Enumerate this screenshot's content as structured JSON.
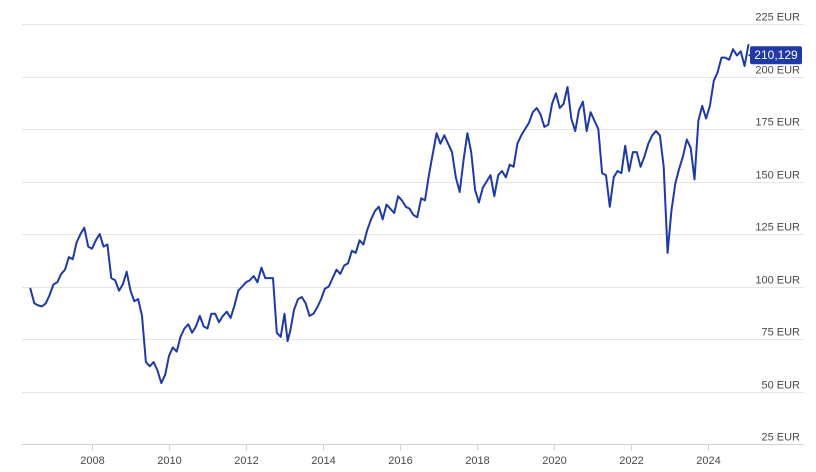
{
  "chart_data": {
    "type": "line",
    "title": "",
    "xlabel": "",
    "ylabel": "",
    "unit": "EUR",
    "ylim": [
      25,
      225
    ],
    "xlim": [
      2006.35,
      2025.2
    ],
    "y_ticks": [
      25,
      50,
      75,
      100,
      125,
      150,
      175,
      200,
      225
    ],
    "y_tick_labels": [
      "25 EUR",
      "50 EUR",
      "75 EUR",
      "100 EUR",
      "125 EUR",
      "150 EUR",
      "175 EUR",
      "200 EUR",
      "225 EUR"
    ],
    "x_ticks": [
      2008,
      2010,
      2012,
      2014,
      2016,
      2018,
      2020,
      2022,
      2024
    ],
    "x_tick_labels": [
      "2008",
      "2010",
      "2012",
      "2014",
      "2016",
      "2018",
      "2020",
      "2022",
      "2024"
    ],
    "grid": true,
    "line_color": "#1f3aa6",
    "last_value_label": "210,129",
    "last_value": 210.129,
    "series": [
      {
        "points": [
          [
            2006.4,
            99
          ],
          [
            2006.5,
            92
          ],
          [
            2006.6,
            91
          ],
          [
            2006.7,
            90.5
          ],
          [
            2006.8,
            92
          ],
          [
            2006.9,
            96
          ],
          [
            2007.0,
            101
          ],
          [
            2007.1,
            102
          ],
          [
            2007.2,
            106
          ],
          [
            2007.3,
            108
          ],
          [
            2007.4,
            114
          ],
          [
            2007.5,
            113
          ],
          [
            2007.6,
            121
          ],
          [
            2007.7,
            125
          ],
          [
            2007.8,
            128
          ],
          [
            2007.9,
            119
          ],
          [
            2008.0,
            118
          ],
          [
            2008.1,
            122
          ],
          [
            2008.2,
            125
          ],
          [
            2008.3,
            119
          ],
          [
            2008.4,
            120
          ],
          [
            2008.5,
            104
          ],
          [
            2008.6,
            103
          ],
          [
            2008.7,
            98
          ],
          [
            2008.8,
            101
          ],
          [
            2008.9,
            107
          ],
          [
            2009.0,
            98
          ],
          [
            2009.1,
            93
          ],
          [
            2009.2,
            94
          ],
          [
            2009.3,
            86
          ],
          [
            2009.4,
            64
          ],
          [
            2009.5,
            62
          ],
          [
            2009.6,
            64
          ],
          [
            2009.7,
            60
          ],
          [
            2009.8,
            54
          ],
          [
            2009.9,
            58
          ],
          [
            2010.0,
            67
          ],
          [
            2010.1,
            71
          ],
          [
            2010.2,
            69
          ],
          [
            2010.3,
            76
          ],
          [
            2010.4,
            80
          ],
          [
            2010.5,
            82
          ],
          [
            2010.6,
            78
          ],
          [
            2010.7,
            81
          ],
          [
            2010.8,
            86
          ],
          [
            2010.9,
            81
          ],
          [
            2011.0,
            80
          ],
          [
            2011.1,
            87
          ],
          [
            2011.2,
            87
          ],
          [
            2011.3,
            83
          ],
          [
            2011.4,
            86
          ],
          [
            2011.5,
            88
          ],
          [
            2011.6,
            85
          ],
          [
            2011.7,
            91
          ],
          [
            2011.8,
            98
          ],
          [
            2011.9,
            100
          ],
          [
            2012.0,
            102
          ],
          [
            2012.1,
            103
          ],
          [
            2012.2,
            105
          ],
          [
            2012.3,
            102
          ],
          [
            2012.4,
            109
          ],
          [
            2012.5,
            104
          ],
          [
            2012.6,
            104
          ],
          [
            2012.7,
            104
          ],
          [
            2012.8,
            78
          ],
          [
            2012.9,
            76
          ],
          [
            2013.0,
            87
          ],
          [
            2013.08,
            74
          ],
          [
            2013.15,
            79
          ],
          [
            2013.25,
            89
          ],
          [
            2013.35,
            94
          ],
          [
            2013.45,
            95
          ],
          [
            2013.55,
            92
          ],
          [
            2013.65,
            86
          ],
          [
            2013.75,
            87
          ],
          [
            2013.85,
            90
          ],
          [
            2013.95,
            94
          ],
          [
            2014.05,
            99
          ],
          [
            2014.15,
            100
          ],
          [
            2014.25,
            104
          ],
          [
            2014.35,
            108
          ],
          [
            2014.45,
            106
          ],
          [
            2014.55,
            110
          ],
          [
            2014.65,
            111
          ],
          [
            2014.75,
            117
          ],
          [
            2014.85,
            116
          ],
          [
            2014.95,
            122
          ],
          [
            2015.05,
            120
          ],
          [
            2015.15,
            127
          ],
          [
            2015.25,
            132
          ],
          [
            2015.35,
            136
          ],
          [
            2015.45,
            138
          ],
          [
            2015.55,
            132
          ],
          [
            2015.65,
            139
          ],
          [
            2015.75,
            137
          ],
          [
            2015.85,
            135
          ],
          [
            2015.95,
            143
          ],
          [
            2016.05,
            141
          ],
          [
            2016.15,
            138
          ],
          [
            2016.25,
            137
          ],
          [
            2016.35,
            134
          ],
          [
            2016.45,
            133
          ],
          [
            2016.55,
            142
          ],
          [
            2016.65,
            141
          ],
          [
            2016.75,
            153
          ],
          [
            2016.85,
            163
          ],
          [
            2016.95,
            173
          ],
          [
            2017.05,
            168
          ],
          [
            2017.15,
            172
          ],
          [
            2017.25,
            168
          ],
          [
            2017.35,
            164
          ],
          [
            2017.45,
            152
          ],
          [
            2017.55,
            145
          ],
          [
            2017.65,
            160
          ],
          [
            2017.75,
            173
          ],
          [
            2017.85,
            164
          ],
          [
            2017.95,
            146
          ],
          [
            2018.05,
            140
          ],
          [
            2018.15,
            147
          ],
          [
            2018.25,
            150
          ],
          [
            2018.35,
            153
          ],
          [
            2018.45,
            143
          ],
          [
            2018.55,
            153
          ],
          [
            2018.65,
            155
          ],
          [
            2018.75,
            152
          ],
          [
            2018.85,
            158
          ],
          [
            2018.95,
            157
          ],
          [
            2019.05,
            168
          ],
          [
            2019.15,
            172
          ],
          [
            2019.25,
            175
          ],
          [
            2019.35,
            178
          ],
          [
            2019.45,
            183
          ],
          [
            2019.55,
            185
          ],
          [
            2019.65,
            182
          ],
          [
            2019.75,
            176
          ],
          [
            2019.85,
            177
          ],
          [
            2019.95,
            187
          ],
          [
            2020.05,
            192
          ],
          [
            2020.15,
            185
          ],
          [
            2020.25,
            187
          ],
          [
            2020.35,
            195
          ],
          [
            2020.45,
            180
          ],
          [
            2020.55,
            174
          ],
          [
            2020.65,
            184
          ],
          [
            2020.75,
            188
          ],
          [
            2020.85,
            174
          ],
          [
            2020.95,
            183
          ],
          [
            2021.05,
            179
          ],
          [
            2021.15,
            175
          ],
          [
            2021.25,
            154
          ],
          [
            2021.35,
            153
          ],
          [
            2021.45,
            138
          ],
          [
            2021.55,
            152
          ],
          [
            2021.65,
            155
          ],
          [
            2021.75,
            154
          ],
          [
            2021.85,
            167
          ],
          [
            2021.95,
            155
          ],
          [
            2022.05,
            164
          ],
          [
            2022.15,
            164
          ],
          [
            2022.25,
            157
          ],
          [
            2022.35,
            162
          ],
          [
            2022.45,
            168
          ],
          [
            2022.55,
            172
          ],
          [
            2022.65,
            174
          ],
          [
            2022.75,
            172
          ],
          [
            2022.85,
            157
          ],
          [
            2022.95,
            116
          ],
          [
            2023.05,
            136
          ],
          [
            2023.15,
            149
          ],
          [
            2023.25,
            156
          ],
          [
            2023.35,
            162
          ],
          [
            2023.45,
            170
          ],
          [
            2023.55,
            166
          ],
          [
            2023.65,
            151
          ],
          [
            2023.75,
            179
          ],
          [
            2023.85,
            186
          ],
          [
            2023.95,
            180
          ],
          [
            2024.05,
            186
          ],
          [
            2024.15,
            198
          ],
          [
            2024.25,
            202
          ],
          [
            2024.35,
            209
          ],
          [
            2024.45,
            209
          ],
          [
            2024.55,
            208
          ],
          [
            2024.65,
            213
          ],
          [
            2024.75,
            210
          ],
          [
            2024.85,
            212
          ],
          [
            2024.95,
            205
          ],
          [
            2025.05,
            215
          ]
        ]
      }
    ]
  }
}
